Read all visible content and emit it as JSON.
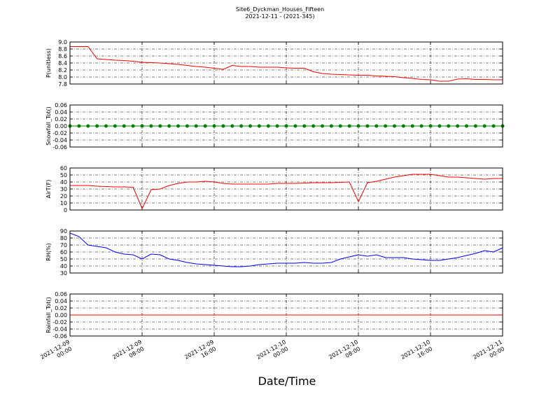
{
  "chart_data": {
    "type": "line",
    "title": "Site6_Dyckman_Houses_Fifteen",
    "subtitle": "2021-12-11 - (2021-345)",
    "xlabel": "Date/Time",
    "xlim": [
      "2021-12-09 00:00",
      "2021-12-11 00:00"
    ],
    "xticks": [
      "2021-12-09 00:00",
      "2021-12-09 08:00",
      "2021-12-09 16:00",
      "2021-12-10 00:00",
      "2021-12-10 08:00",
      "2021-12-10 16:00",
      "2021-12-11 00:00"
    ],
    "x": [
      "2021-12-09 00:00",
      "2021-12-09 01:00",
      "2021-12-09 02:00",
      "2021-12-09 03:00",
      "2021-12-09 04:00",
      "2021-12-09 05:00",
      "2021-12-09 06:00",
      "2021-12-09 07:00",
      "2021-12-09 08:00",
      "2021-12-09 09:00",
      "2021-12-09 10:00",
      "2021-12-09 11:00",
      "2021-12-09 12:00",
      "2021-12-09 13:00",
      "2021-12-09 14:00",
      "2021-12-09 15:00",
      "2021-12-09 16:00",
      "2021-12-09 17:00",
      "2021-12-09 18:00",
      "2021-12-09 19:00",
      "2021-12-09 20:00",
      "2021-12-09 21:00",
      "2021-12-09 22:00",
      "2021-12-09 23:00",
      "2021-12-10 00:00",
      "2021-12-10 01:00",
      "2021-12-10 02:00",
      "2021-12-10 03:00",
      "2021-12-10 04:00",
      "2021-12-10 05:00",
      "2021-12-10 06:00",
      "2021-12-10 07:00",
      "2021-12-10 08:00",
      "2021-12-10 09:00",
      "2021-12-10 10:00",
      "2021-12-10 11:00",
      "2021-12-10 12:00",
      "2021-12-10 13:00",
      "2021-12-10 14:00",
      "2021-12-10 15:00",
      "2021-12-10 16:00",
      "2021-12-10 17:00",
      "2021-12-10 18:00",
      "2021-12-10 19:00",
      "2021-12-10 20:00",
      "2021-12-10 21:00",
      "2021-12-10 22:00",
      "2021-12-10 23:00",
      "2021-12-11 00:00"
    ],
    "grid": true,
    "panels": [
      {
        "ylabel": "P(unitless)",
        "ylim": [
          7.8,
          9.0
        ],
        "yticks": [
          {
            "value": 7.8,
            "label": "7.8"
          },
          {
            "value": 8.0,
            "label": "8.0"
          },
          {
            "value": 8.2,
            "label": "8.2"
          },
          {
            "value": 8.4,
            "label": "8.4"
          },
          {
            "value": 8.6,
            "label": "8.6"
          },
          {
            "value": 8.8,
            "label": "8.8"
          },
          {
            "value": 9.0,
            "label": "9.0"
          }
        ],
        "series": [
          {
            "color": "#ff0000",
            "markers": false,
            "values": [
              8.87,
              8.87,
              8.87,
              8.52,
              8.5,
              8.48,
              8.47,
              8.45,
              8.42,
              8.41,
              8.4,
              8.38,
              8.36,
              8.33,
              8.3,
              8.28,
              8.25,
              8.22,
              8.33,
              8.3,
              8.3,
              8.28,
              8.28,
              8.28,
              8.26,
              8.25,
              8.25,
              8.15,
              8.1,
              8.08,
              8.07,
              8.06,
              8.05,
              8.05,
              8.03,
              8.02,
              8.01,
              7.98,
              7.96,
              7.93,
              7.92,
              7.88,
              7.88,
              7.94,
              7.95,
              7.93,
              7.93,
              7.92,
              7.92
            ]
          }
        ]
      },
      {
        "ylabel": "Snowfall_Tot()",
        "ylim": [
          -0.06,
          0.06
        ],
        "yticks": [
          {
            "value": -0.06,
            "label": "-0.06"
          },
          {
            "value": -0.04,
            "label": "-0.04"
          },
          {
            "value": -0.02,
            "label": "-0.02"
          },
          {
            "value": 0,
            "label": "0.00"
          },
          {
            "value": 0.02,
            "label": "0.02"
          },
          {
            "value": 0.04,
            "label": "0.04"
          },
          {
            "value": 0.06,
            "label": "0.06"
          }
        ],
        "series": [
          {
            "color": "#008000",
            "markers": true,
            "values": [
              0,
              0,
              0,
              0,
              0,
              0,
              0,
              0,
              0,
              0,
              0,
              0,
              0,
              0,
              0,
              0,
              0,
              0,
              0,
              0,
              0,
              0,
              0,
              0,
              0,
              0,
              0,
              0,
              0,
              0,
              0,
              0,
              0,
              0,
              0,
              0,
              0,
              0,
              0,
              0,
              0,
              0,
              0,
              0,
              0,
              0,
              0,
              0,
              0
            ]
          }
        ]
      },
      {
        "ylabel": "AirT(F)",
        "ylim": [
          0,
          60
        ],
        "yticks": [
          0,
          10,
          20,
          30,
          40,
          50,
          60
        ],
        "series": [
          {
            "color": "#ff0000",
            "markers": false,
            "values": [
              35,
              35,
              35,
              34,
              33.5,
              33,
              33,
              32.5,
              2,
              29,
              30,
              35,
              38,
              40,
              40,
              41,
              40,
              38,
              37,
              37,
              37,
              37,
              37,
              38,
              38,
              38,
              38.5,
              39,
              39,
              39,
              39.5,
              40,
              12,
              39,
              41,
              44,
              47,
              49,
              51,
              51,
              51,
              49,
              47,
              47,
              46,
              45,
              44,
              45,
              45
            ]
          }
        ]
      },
      {
        "ylabel": "RH(%)",
        "ylim": [
          30,
          90
        ],
        "yticks": [
          30,
          40,
          50,
          60,
          70,
          80,
          90
        ],
        "series": [
          {
            "color": "#0000ff",
            "markers": false,
            "values": [
              87,
              82,
              70,
              68,
              66,
              60,
              57,
              56,
              50,
              57,
              56,
              50,
              48,
              45,
              43,
              42,
              41,
              40,
              39,
              39,
              40,
              42,
              43,
              44,
              44,
              44,
              45,
              44,
              44,
              45,
              50,
              53,
              56,
              54,
              56,
              52,
              52,
              52,
              50,
              49,
              48,
              48,
              50,
              52,
              55,
              58,
              62,
              60,
              66
            ]
          }
        ]
      },
      {
        "ylabel": "Rainfall_Tot()",
        "ylim": [
          -0.06,
          0.06
        ],
        "yticks": [
          {
            "value": -0.06,
            "label": "-0.06"
          },
          {
            "value": -0.04,
            "label": "-0.04"
          },
          {
            "value": -0.02,
            "label": "-0.02"
          },
          {
            "value": 0,
            "label": "0.00"
          },
          {
            "value": 0.02,
            "label": "0.02"
          },
          {
            "value": 0.04,
            "label": "0.04"
          },
          {
            "value": 0.06,
            "label": "0.06"
          }
        ],
        "series": [
          {
            "color": "#ff0000",
            "markers": false,
            "values": [
              0,
              0,
              0,
              0,
              0,
              0,
              0,
              0,
              0,
              0,
              0,
              0,
              0,
              0,
              0,
              0,
              0,
              0,
              0,
              0,
              0,
              0,
              0,
              0,
              0,
              0,
              0,
              0,
              0,
              0,
              0,
              0,
              0,
              0,
              0,
              0,
              0,
              0,
              0,
              0,
              0,
              0,
              0,
              0,
              0,
              0,
              0,
              0,
              0
            ]
          }
        ]
      }
    ]
  }
}
